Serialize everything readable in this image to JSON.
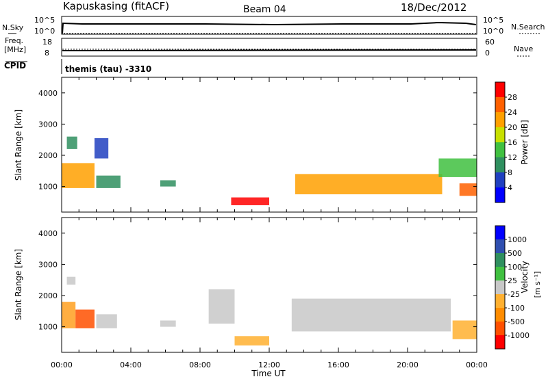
{
  "header": {
    "station": "Kapuskasing (fitACF)",
    "beam": "Beam 04",
    "date": "18/Dec/2012"
  },
  "top_panels": {
    "nsky_label": "N.Sky",
    "nsearch_label": "N.Search",
    "nsky_ticks": [
      "10^5",
      "10^0"
    ],
    "nsearch_ticks": [
      "10^5",
      "10^0"
    ],
    "freq_label_1": "Freq.",
    "freq_label_2": "[MHz]",
    "freq_ticks": [
      "18",
      "8"
    ],
    "nave_label": "Nave",
    "nave_ticks": [
      "60",
      "0"
    ],
    "cpid_label": "CPID",
    "cpid_text": "themis (tau) -3310"
  },
  "chart_data": [
    {
      "type": "heatmap",
      "name": "power-panel",
      "xlabel": "Time UT",
      "ylabel": "Slant Range [km]",
      "x_ticks": [
        "00:00",
        "04:00",
        "08:00",
        "12:00",
        "16:00",
        "20:00",
        "00:00"
      ],
      "x_range_hours": [
        0,
        24
      ],
      "y_ticks": [
        1000,
        2000,
        3000,
        4000
      ],
      "ylim": [
        180,
        4500
      ],
      "colorbar": {
        "label": "Power [dB]",
        "ticks": [
          "4",
          "8",
          "12",
          "16",
          "20",
          "24",
          "28"
        ],
        "colors": [
          "#0000ff",
          "#2040c0",
          "#2f8f5f",
          "#40c040",
          "#c8e000",
          "#ffa000",
          "#ff6000",
          "#ff0000"
        ]
      },
      "regions": [
        {
          "t0": 0.0,
          "t1": 1.9,
          "r0": 950,
          "r1": 1750,
          "level": 5
        },
        {
          "t0": 0.3,
          "t1": 0.9,
          "r0": 2200,
          "r1": 2600,
          "level": 2
        },
        {
          "t0": 1.9,
          "t1": 2.7,
          "r0": 1900,
          "r1": 2550,
          "level": 1
        },
        {
          "t0": 2.0,
          "t1": 3.4,
          "r0": 950,
          "r1": 1350,
          "level": 2
        },
        {
          "t0": 5.7,
          "t1": 6.6,
          "r0": 1000,
          "r1": 1200,
          "level": 2
        },
        {
          "t0": 9.8,
          "t1": 12.0,
          "r0": 400,
          "r1": 650,
          "level": 7
        },
        {
          "t0": 13.5,
          "t1": 22.0,
          "r0": 750,
          "r1": 1400,
          "level": 5
        },
        {
          "t0": 21.8,
          "t1": 24.0,
          "r0": 1300,
          "r1": 1900,
          "level": 3
        },
        {
          "t0": 23.0,
          "t1": 24.0,
          "r0": 700,
          "r1": 1100,
          "level": 6
        }
      ]
    },
    {
      "type": "heatmap",
      "name": "velocity-panel",
      "xlabel": "Time UT",
      "ylabel": "Slant Range [km]",
      "x_ticks": [
        "00:00",
        "04:00",
        "08:00",
        "12:00",
        "16:00",
        "20:00",
        "00:00"
      ],
      "x_range_hours": [
        0,
        24
      ],
      "y_ticks": [
        1000,
        2000,
        3000,
        4000
      ],
      "ylim": [
        180,
        4500
      ],
      "colorbar": {
        "label": "Velocity",
        "unit": "[m s⁻¹]",
        "ticks": [
          "1000",
          "500",
          "100",
          "25",
          "-25",
          "-100",
          "-500",
          "-1000"
        ],
        "colors": [
          "#0000ff",
          "#2f4fb0",
          "#2f8f5f",
          "#40c040",
          "#c8c8c8",
          "#ffb030",
          "#ff8c00",
          "#ff5000",
          "#ff0000"
        ]
      },
      "regions": [
        {
          "t0": 0.0,
          "t1": 0.8,
          "r0": 950,
          "r1": 1800,
          "color": "#ffa020"
        },
        {
          "t0": 0.8,
          "t1": 1.9,
          "r0": 950,
          "r1": 1550,
          "color": "#ff5000"
        },
        {
          "t0": 0.3,
          "t1": 0.8,
          "r0": 2350,
          "r1": 2600,
          "color": "#c8c8c8"
        },
        {
          "t0": 2.0,
          "t1": 3.2,
          "r0": 950,
          "r1": 1400,
          "color": "#c8c8c8"
        },
        {
          "t0": 5.7,
          "t1": 6.6,
          "r0": 1000,
          "r1": 1200,
          "color": "#c8c8c8"
        },
        {
          "t0": 8.5,
          "t1": 10.0,
          "r0": 1100,
          "r1": 2200,
          "color": "#c8c8c8"
        },
        {
          "t0": 10.0,
          "t1": 12.0,
          "r0": 400,
          "r1": 700,
          "color": "#ffb030"
        },
        {
          "t0": 13.3,
          "t1": 22.5,
          "r0": 850,
          "r1": 1900,
          "color": "#c8c8c8"
        },
        {
          "t0": 22.6,
          "t1": 24.0,
          "r0": 600,
          "r1": 1200,
          "color": "#ffb030"
        }
      ]
    }
  ]
}
